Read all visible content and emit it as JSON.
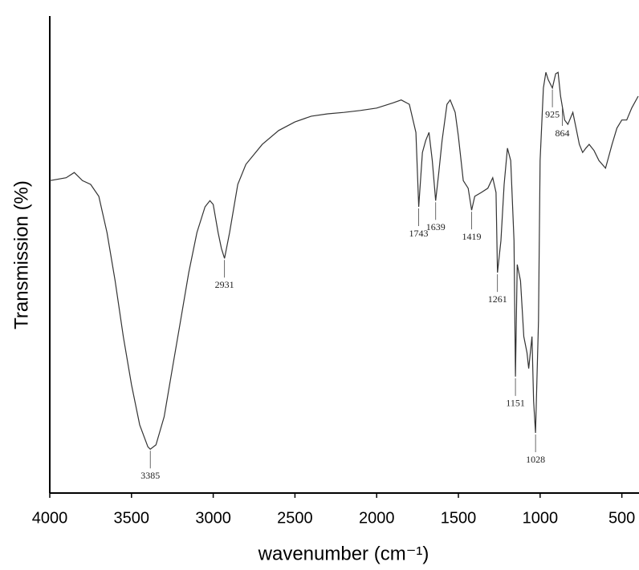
{
  "chart_data": {
    "type": "line",
    "x_label": "wavenumber (cm⁻¹)",
    "y_label": "Transmission (%)",
    "color": "#333333",
    "grid": false,
    "xlim": [
      4000,
      400
    ],
    "xticks": [
      4000,
      3500,
      3000,
      2500,
      2000,
      1500,
      1000,
      500
    ],
    "ylim": [
      0,
      100
    ],
    "x": [
      4000,
      3900,
      3850,
      3800,
      3750,
      3700,
      3650,
      3600,
      3550,
      3500,
      3450,
      3400,
      3385,
      3350,
      3300,
      3250,
      3200,
      3150,
      3100,
      3050,
      3020,
      3000,
      2970,
      2950,
      2931,
      2900,
      2850,
      2800,
      2700,
      2600,
      2500,
      2400,
      2300,
      2200,
      2100,
      2000,
      1900,
      1850,
      1800,
      1760,
      1743,
      1720,
      1700,
      1680,
      1660,
      1639,
      1620,
      1600,
      1570,
      1550,
      1520,
      1500,
      1470,
      1440,
      1419,
      1400,
      1360,
      1320,
      1290,
      1270,
      1261,
      1240,
      1220,
      1200,
      1180,
      1160,
      1151,
      1140,
      1120,
      1100,
      1080,
      1070,
      1050,
      1040,
      1028,
      1010,
      1000,
      980,
      965,
      950,
      925,
      905,
      890,
      875,
      864,
      850,
      830,
      800,
      780,
      760,
      740,
      720,
      700,
      670,
      640,
      600,
      580,
      560,
      530,
      500,
      470,
      440,
      400
    ],
    "values": [
      65.5,
      66.1,
      67.2,
      65.5,
      64.7,
      62.2,
      54.6,
      44.5,
      32.8,
      22.7,
      14.3,
      9.7,
      9.2,
      10.1,
      16.0,
      26.1,
      36.1,
      46.2,
      54.6,
      60.0,
      61.3,
      60.5,
      54.6,
      51.3,
      49.2,
      54.6,
      64.7,
      68.9,
      73.1,
      76.0,
      77.8,
      79.0,
      79.5,
      79.8,
      80.2,
      80.7,
      81.8,
      82.4,
      81.5,
      75.6,
      60.0,
      71.4,
      73.9,
      75.6,
      69.7,
      61.3,
      67.2,
      73.9,
      81.5,
      82.4,
      79.8,
      74.8,
      65.5,
      63.9,
      59.3,
      62.2,
      63.0,
      63.9,
      66.1,
      63.0,
      46.2,
      52.9,
      64.7,
      72.3,
      69.7,
      52.9,
      24.4,
      47.9,
      44.5,
      32.8,
      29.4,
      26.1,
      32.8,
      19.3,
      12.6,
      36.1,
      69.7,
      84.9,
      88.2,
      86.6,
      84.9,
      87.9,
      88.2,
      83.2,
      81.0,
      78.2,
      77.3,
      79.8,
      76.5,
      73.1,
      71.4,
      72.3,
      73.1,
      71.8,
      69.7,
      68.1,
      70.6,
      73.1,
      76.5,
      78.2,
      78.2,
      80.7,
      83.2
    ],
    "annotations": [
      3385,
      2931,
      1743,
      1639,
      1419,
      1261,
      1151,
      1028,
      925,
      864
    ]
  }
}
